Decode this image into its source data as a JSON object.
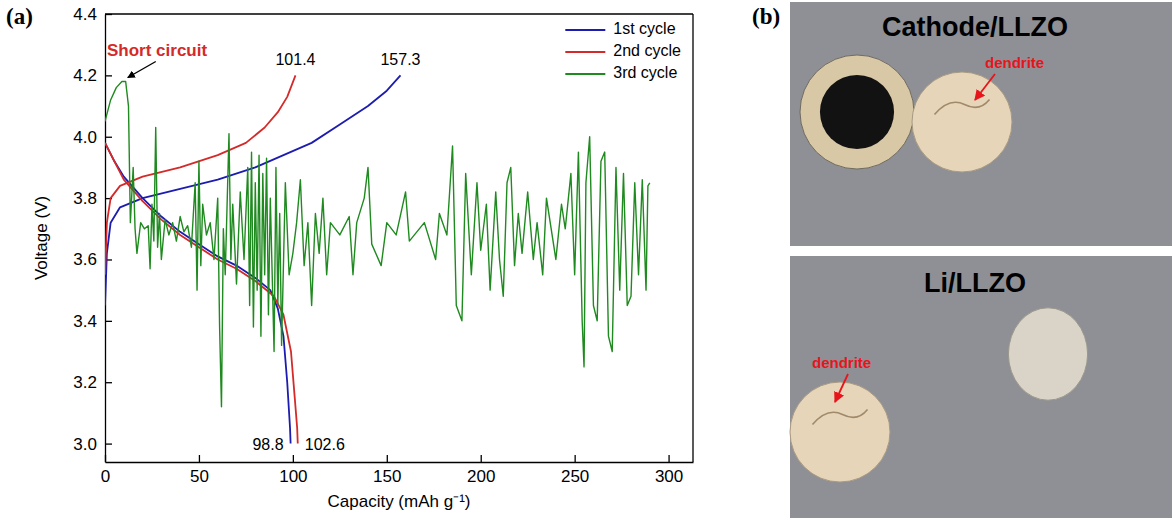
{
  "chart_data": {
    "type": "line",
    "panel_label": "(a)",
    "x_label": "Capacity (mAh g⁻¹)",
    "y_label": "Voltage (V)",
    "xlim": [
      0,
      313
    ],
    "xticks": [
      0,
      50,
      100,
      150,
      200,
      250,
      300
    ],
    "ylim": [
      2.94,
      4.4
    ],
    "yticks": [
      {
        "value": 3,
        "label": "3.0"
      },
      3.2,
      3.4,
      3.6,
      3.8,
      {
        "value": 4,
        "label": "4.0"
      },
      4.2,
      4.4
    ],
    "grid": false,
    "legend": "upper right",
    "annotations": [
      {
        "text": "Short circuit",
        "x": 10,
        "y": 4.18
      }
    ],
    "series": [
      {
        "name": "1st cycle",
        "color": "#1c1cb0",
        "x": [
          0,
          1,
          3,
          8,
          20,
          40,
          60,
          80,
          95,
          110,
          125,
          140,
          150,
          157.3,
          null,
          0,
          5,
          10,
          20,
          30,
          40,
          50,
          60,
          70,
          80,
          88,
          92,
          95,
          97,
          98.5,
          98.8
        ],
        "values": [
          3.45,
          3.62,
          3.72,
          3.77,
          3.8,
          3.83,
          3.86,
          3.9,
          3.94,
          3.98,
          4.04,
          4.1,
          4.15,
          4.2,
          null,
          3.98,
          3.92,
          3.87,
          3.8,
          3.74,
          3.69,
          3.65,
          3.61,
          3.58,
          3.54,
          3.5,
          3.44,
          3.35,
          3.2,
          3.05,
          3.0
        ],
        "charge_capacity": 157.3,
        "discharge_capacity": 98.8
      },
      {
        "name": "2nd cycle",
        "color": "#d42a2a",
        "x": [
          0,
          1,
          3,
          8,
          20,
          40,
          60,
          75,
          85,
          92,
          97,
          101.4,
          null,
          0,
          5,
          10,
          20,
          30,
          40,
          50,
          60,
          70,
          80,
          90,
          95,
          99,
          101,
          102.3,
          102.6
        ],
        "values": [
          3.55,
          3.72,
          3.8,
          3.84,
          3.87,
          3.9,
          3.94,
          3.98,
          4.03,
          4.08,
          4.13,
          4.2,
          null,
          3.98,
          3.92,
          3.86,
          3.79,
          3.73,
          3.68,
          3.64,
          3.6,
          3.57,
          3.53,
          3.48,
          3.42,
          3.3,
          3.15,
          3.05,
          3.0
        ],
        "charge_capacity": 101.4,
        "discharge_capacity": 102.6
      },
      {
        "name": "3rd cycle",
        "color": "#1f8a1f",
        "x": [
          0,
          3,
          6,
          9,
          11,
          12.5,
          13.5,
          15,
          16,
          17,
          19,
          21,
          23,
          24,
          25,
          26,
          27,
          28,
          29,
          30,
          32,
          34,
          36,
          38,
          40,
          42,
          44,
          46,
          48,
          49,
          50,
          51,
          52,
          54,
          56,
          58,
          60,
          61,
          62,
          63,
          64,
          66,
          67,
          68,
          70,
          72,
          74,
          76,
          77,
          78,
          79,
          80,
          81,
          82,
          83,
          84,
          85,
          86,
          87,
          88,
          90,
          91,
          92,
          93,
          94,
          96,
          98,
          100,
          102,
          104,
          106,
          108,
          110,
          112,
          114,
          116,
          118,
          120,
          125,
          130,
          132,
          134,
          138,
          140,
          142,
          147,
          150,
          155,
          160,
          162,
          170,
          176,
          178,
          182,
          185,
          187,
          190,
          192,
          195,
          198,
          200,
          203,
          205,
          208,
          210,
          212,
          214,
          216,
          218,
          220,
          222,
          225,
          228,
          230,
          233,
          235,
          238,
          240,
          243,
          245,
          248,
          250,
          252,
          254,
          255,
          256,
          258,
          260,
          262,
          264,
          266,
          268,
          270,
          272,
          274,
          276,
          278,
          280,
          282,
          284,
          286,
          288,
          289,
          290
        ],
        "values": [
          4.05,
          4.12,
          4.16,
          4.18,
          4.18,
          4.1,
          3.72,
          3.9,
          3.7,
          3.62,
          3.72,
          3.7,
          3.71,
          3.57,
          3.78,
          3.66,
          4.03,
          3.64,
          3.75,
          3.6,
          3.73,
          3.68,
          3.72,
          3.66,
          3.74,
          3.69,
          3.71,
          3.64,
          3.85,
          3.5,
          3.92,
          3.58,
          3.78,
          3.68,
          3.72,
          3.6,
          3.8,
          3.38,
          3.12,
          3.7,
          3.55,
          4.01,
          3.6,
          3.78,
          3.52,
          3.82,
          3.6,
          3.9,
          3.45,
          3.95,
          3.38,
          3.85,
          3.5,
          3.94,
          3.35,
          3.88,
          3.55,
          3.93,
          3.42,
          3.8,
          3.3,
          3.9,
          3.45,
          3.75,
          3.32,
          3.85,
          3.55,
          3.62,
          3.72,
          3.86,
          3.58,
          3.72,
          3.45,
          3.75,
          3.62,
          3.8,
          3.55,
          3.72,
          3.68,
          3.74,
          3.55,
          3.72,
          3.8,
          3.9,
          3.65,
          3.58,
          3.72,
          3.68,
          3.82,
          3.66,
          3.72,
          3.6,
          3.75,
          3.68,
          3.97,
          3.45,
          3.4,
          3.88,
          3.55,
          3.85,
          3.63,
          3.78,
          3.5,
          3.82,
          3.6,
          3.48,
          3.85,
          3.9,
          3.58,
          3.75,
          3.62,
          3.82,
          3.6,
          3.72,
          3.55,
          3.8,
          3.68,
          3.6,
          3.78,
          3.7,
          3.88,
          3.55,
          3.95,
          3.4,
          3.25,
          3.85,
          4.0,
          3.45,
          3.4,
          3.92,
          3.95,
          3.35,
          3.3,
          3.9,
          3.5,
          3.88,
          3.45,
          3.48,
          3.85,
          3.55,
          3.86,
          3.5,
          3.84,
          3.85
        ]
      }
    ]
  },
  "panel_b": {
    "panel_label": "(b)",
    "photos": [
      {
        "title": "Cathode/LLZO",
        "callout": "dendrite"
      },
      {
        "title": "Li/LLZO",
        "callout": "dendrite"
      }
    ]
  }
}
